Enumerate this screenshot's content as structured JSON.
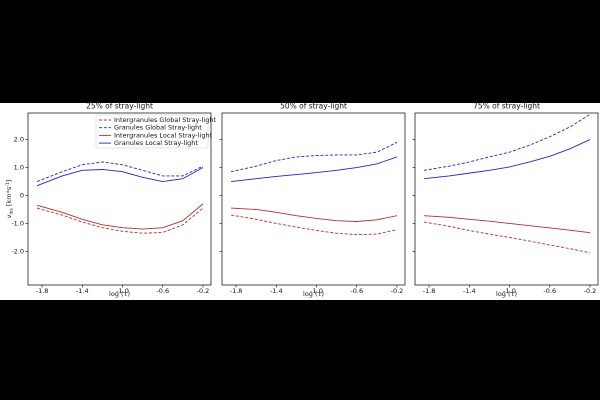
{
  "chart_data": [
    {
      "type": "line",
      "title": "25% of stray-light",
      "xlabel": "log (τ)",
      "ylabel": {
        "symbol": "v",
        "subscript": "los",
        "unit": "[km*s",
        "exponent": "-1",
        "close": "]"
      },
      "legend": "upper right",
      "x": [
        -1.85,
        -1.6,
        -1.4,
        -1.2,
        -1.0,
        -0.8,
        -0.6,
        -0.4,
        -0.2
      ],
      "series": [
        {
          "name": "Intergranules Global Stray-light",
          "color": "#b5302f",
          "dash": true,
          "values": [
            -0.45,
            -0.7,
            -0.95,
            -1.15,
            -1.28,
            -1.35,
            -1.32,
            -1.05,
            -0.45
          ]
        },
        {
          "name": "Granules Global Stray-light",
          "color": "#2424c8",
          "dash": true,
          "values": [
            0.5,
            0.85,
            1.1,
            1.2,
            1.1,
            0.9,
            0.7,
            0.7,
            1.05
          ]
        },
        {
          "name": "Intergranules Local Stray-light",
          "color": "#b5302f",
          "dash": false,
          "values": [
            -0.35,
            -0.6,
            -0.85,
            -1.05,
            -1.15,
            -1.2,
            -1.15,
            -0.9,
            -0.3
          ]
        },
        {
          "name": "Granules Local Stray-light",
          "color": "#2424c8",
          "dash": false,
          "values": [
            0.35,
            0.7,
            0.9,
            0.93,
            0.85,
            0.65,
            0.5,
            0.6,
            1.0
          ]
        }
      ],
      "xlim": [
        -1.94,
        -0.12
      ],
      "ylim": [
        -3.2,
        2.95
      ],
      "xticks": [
        -1.8,
        -1.4,
        {
          "value": -1.0,
          "label": "-1.0"
        },
        -0.6,
        -0.2
      ],
      "yticks": [
        {
          "value": -2,
          "label": "-2.0"
        },
        {
          "value": -1,
          "label": "-1.0"
        },
        0,
        {
          "value": 1,
          "label": "1.0"
        },
        {
          "value": 2,
          "label": "2.0"
        }
      ]
    },
    {
      "type": "line",
      "title": "50% of stray-light",
      "xlabel": "log (τ)",
      "x": [
        -1.85,
        -1.6,
        -1.4,
        -1.2,
        -1.0,
        -0.8,
        -0.6,
        -0.4,
        -0.2
      ],
      "series": [
        {
          "color": "#b5302f",
          "dash": true,
          "values": [
            -0.7,
            -0.85,
            -1.0,
            -1.13,
            -1.25,
            -1.35,
            -1.4,
            -1.38,
            -1.22
          ]
        },
        {
          "color": "#2424c8",
          "dash": true,
          "values": [
            0.85,
            1.05,
            1.25,
            1.38,
            1.43,
            1.45,
            1.45,
            1.55,
            1.9
          ]
        },
        {
          "color": "#b5302f",
          "dash": false,
          "values": [
            -0.45,
            -0.5,
            -0.6,
            -0.72,
            -0.82,
            -0.9,
            -0.93,
            -0.87,
            -0.72
          ]
        },
        {
          "color": "#2424c8",
          "dash": false,
          "values": [
            0.5,
            0.6,
            0.68,
            0.75,
            0.82,
            0.9,
            1.0,
            1.13,
            1.38
          ]
        }
      ],
      "xlim": [
        -1.94,
        -0.12
      ],
      "ylim": [
        -3.2,
        2.95
      ],
      "xticks": [
        -1.8,
        -1.4,
        {
          "value": -1.0,
          "label": "-1.0"
        },
        -0.6,
        -0.2
      ],
      "yticks": [
        -2,
        -1,
        0,
        1,
        2
      ]
    },
    {
      "type": "line",
      "title": "75% of stray-light",
      "xlabel": "log (τ)",
      "x": [
        -1.85,
        -1.6,
        -1.4,
        -1.2,
        -1.0,
        -0.8,
        -0.6,
        -0.4,
        -0.2
      ],
      "series": [
        {
          "color": "#b5302f",
          "dash": true,
          "values": [
            -0.95,
            -1.1,
            -1.25,
            -1.38,
            -1.5,
            -1.63,
            -1.77,
            -1.9,
            -2.05
          ]
        },
        {
          "color": "#2424c8",
          "dash": true,
          "values": [
            0.9,
            1.05,
            1.2,
            1.38,
            1.55,
            1.8,
            2.1,
            2.45,
            2.9
          ]
        },
        {
          "color": "#b5302f",
          "dash": false,
          "values": [
            -0.72,
            -0.78,
            -0.85,
            -0.92,
            -1.0,
            -1.08,
            -1.16,
            -1.24,
            -1.33
          ]
        },
        {
          "color": "#2424c8",
          "dash": false,
          "values": [
            0.6,
            0.7,
            0.8,
            0.9,
            1.02,
            1.2,
            1.4,
            1.67,
            2.0
          ]
        }
      ],
      "xlim": [
        -1.94,
        -0.12
      ],
      "ylim": [
        -3.2,
        2.95
      ],
      "xticks": [
        -1.8,
        -1.4,
        {
          "value": -1.0,
          "label": "-1.0"
        },
        -0.6,
        -0.2
      ],
      "yticks": [
        -2,
        -1,
        0,
        1,
        2
      ]
    }
  ]
}
